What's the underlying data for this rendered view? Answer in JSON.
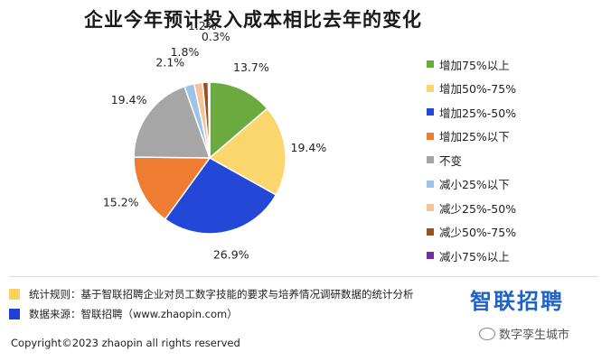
{
  "chart_data": {
    "type": "pie",
    "title": "企业今年预计投入成本相比去年的变化",
    "slices": [
      {
        "label": "增加75%以上",
        "value": 13.7,
        "value_label": "13.7%",
        "color": "#6aaa3f"
      },
      {
        "label": "增加50%-75%",
        "value": 19.4,
        "value_label": "19.4%",
        "color": "#fbd66c"
      },
      {
        "label": "增加25%-50%",
        "value": 26.9,
        "value_label": "26.9%",
        "color": "#2347d6"
      },
      {
        "label": "增加25%以下",
        "value": 15.2,
        "value_label": "15.2%",
        "color": "#ee7d31"
      },
      {
        "label": "不变",
        "value": 19.4,
        "value_label": "19.4%",
        "color": "#a6a6a6"
      },
      {
        "label": "减小25%以下",
        "value": 2.1,
        "value_label": "2.1%",
        "color": "#9dc3e6"
      },
      {
        "label": "减少25%-50%",
        "value": 1.8,
        "value_label": "1.8%",
        "color": "#f4c49b"
      },
      {
        "label": "减少50%-75%",
        "value": 1.2,
        "value_label": "1.2%",
        "color": "#9e4f1d"
      },
      {
        "label": "减小75%以上",
        "value": 0.3,
        "value_label": "0.3%",
        "color": "#7030a0"
      }
    ],
    "legend_position": "right"
  },
  "footer": {
    "note1": "统计规则：基于智联招聘企业对员工数字技能的要求与培养情况调研数据的统计分析",
    "note1_color": "#f8d35c",
    "note2": "数据来源：智联招聘（www.zhaopin.com）",
    "note2_color": "#1f3fd8",
    "brand": "智联招聘",
    "copyright": "Copyright©2023 zhaopin all rights reserved",
    "wechat": "数字孪生城市"
  }
}
